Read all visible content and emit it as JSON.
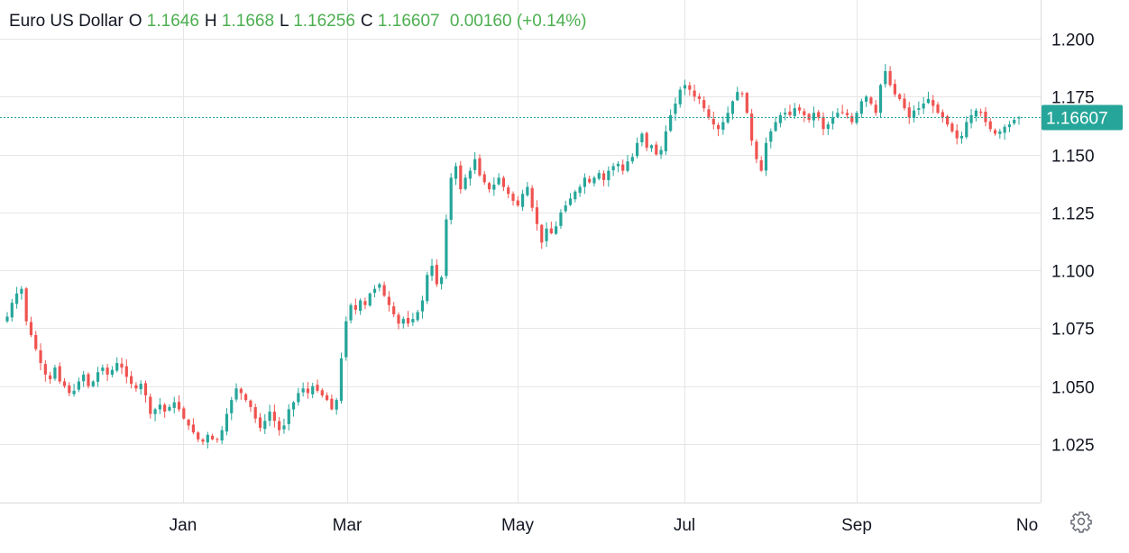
{
  "legend": {
    "title": "Euro US Dollar",
    "o_label": "O",
    "o_value": "1.1646",
    "h_label": "H",
    "h_value": "1.1668",
    "l_label": "L",
    "l_value": "1.16256",
    "c_label": "C",
    "c_value": "1.16607",
    "change": "0.00160 (+0.14%)"
  },
  "colors": {
    "up": "#26a69a",
    "down": "#ef5350",
    "grid": "#e6e6e6",
    "last_price_bg": "#26a69a",
    "legend_value": "#4caf50"
  },
  "settings_icon": "gear-icon",
  "chart_data": {
    "type": "candlestick",
    "y_ticks": [
      "1.200",
      "1.175",
      "1.150",
      "1.125",
      "1.100",
      "1.075",
      "1.050",
      "1.025"
    ],
    "x_ticks": [
      "Jan",
      "Mar",
      "May",
      "Jul",
      "Sep",
      "No"
    ],
    "last_price": "1.16607",
    "ylim": [
      1.0,
      1.215
    ],
    "grid": true,
    "legend_position": "top-left",
    "close_series": [
      1.08,
      1.086,
      1.09,
      1.092,
      1.078,
      1.072,
      1.066,
      1.06,
      1.055,
      1.053,
      1.058,
      1.052,
      1.05,
      1.047,
      1.048,
      1.052,
      1.055,
      1.05,
      1.052,
      1.056,
      1.058,
      1.055,
      1.057,
      1.06,
      1.058,
      1.054,
      1.051,
      1.049,
      1.051,
      1.046,
      1.038,
      1.04,
      1.042,
      1.039,
      1.041,
      1.043,
      1.04,
      1.036,
      1.033,
      1.03,
      1.027,
      1.026,
      1.029,
      1.027,
      1.027,
      1.031,
      1.038,
      1.044,
      1.049,
      1.047,
      1.044,
      1.041,
      1.036,
      1.032,
      1.035,
      1.039,
      1.035,
      1.031,
      1.033,
      1.04,
      1.043,
      1.047,
      1.049,
      1.047,
      1.05,
      1.048,
      1.046,
      1.044,
      1.04,
      1.044,
      1.062,
      1.078,
      1.085,
      1.083,
      1.087,
      1.085,
      1.09,
      1.092,
      1.094,
      1.089,
      1.085,
      1.081,
      1.077,
      1.079,
      1.077,
      1.079,
      1.082,
      1.087,
      1.098,
      1.102,
      1.094,
      1.097,
      1.122,
      1.14,
      1.145,
      1.135,
      1.14,
      1.143,
      1.148,
      1.141,
      1.138,
      1.135,
      1.137,
      1.14,
      1.136,
      1.133,
      1.13,
      1.128,
      1.133,
      1.136,
      1.127,
      1.12,
      1.112,
      1.118,
      1.116,
      1.119,
      1.125,
      1.128,
      1.131,
      1.134,
      1.136,
      1.14,
      1.138,
      1.14,
      1.142,
      1.139,
      1.143,
      1.145,
      1.146,
      1.143,
      1.147,
      1.149,
      1.155,
      1.159,
      1.153,
      1.154,
      1.15,
      1.152,
      1.16,
      1.167,
      1.172,
      1.178,
      1.18,
      1.178,
      1.175,
      1.174,
      1.17,
      1.166,
      1.163,
      1.161,
      1.164,
      1.168,
      1.173,
      1.177,
      1.176,
      1.168,
      1.156,
      1.148,
      1.143,
      1.155,
      1.16,
      1.164,
      1.167,
      1.168,
      1.167,
      1.17,
      1.169,
      1.167,
      1.165,
      1.168,
      1.166,
      1.161,
      1.163,
      1.166,
      1.168,
      1.168,
      1.167,
      1.164,
      1.168,
      1.173,
      1.175,
      1.172,
      1.168,
      1.18,
      1.186,
      1.18,
      1.176,
      1.174,
      1.17,
      1.166,
      1.169,
      1.17,
      1.172,
      1.174,
      1.171,
      1.168,
      1.166,
      1.163,
      1.16,
      1.157,
      1.158,
      1.164,
      1.167,
      1.169,
      1.168,
      1.164,
      1.161,
      1.159,
      1.16,
      1.162,
      1.163,
      1.165,
      1.166
    ]
  }
}
